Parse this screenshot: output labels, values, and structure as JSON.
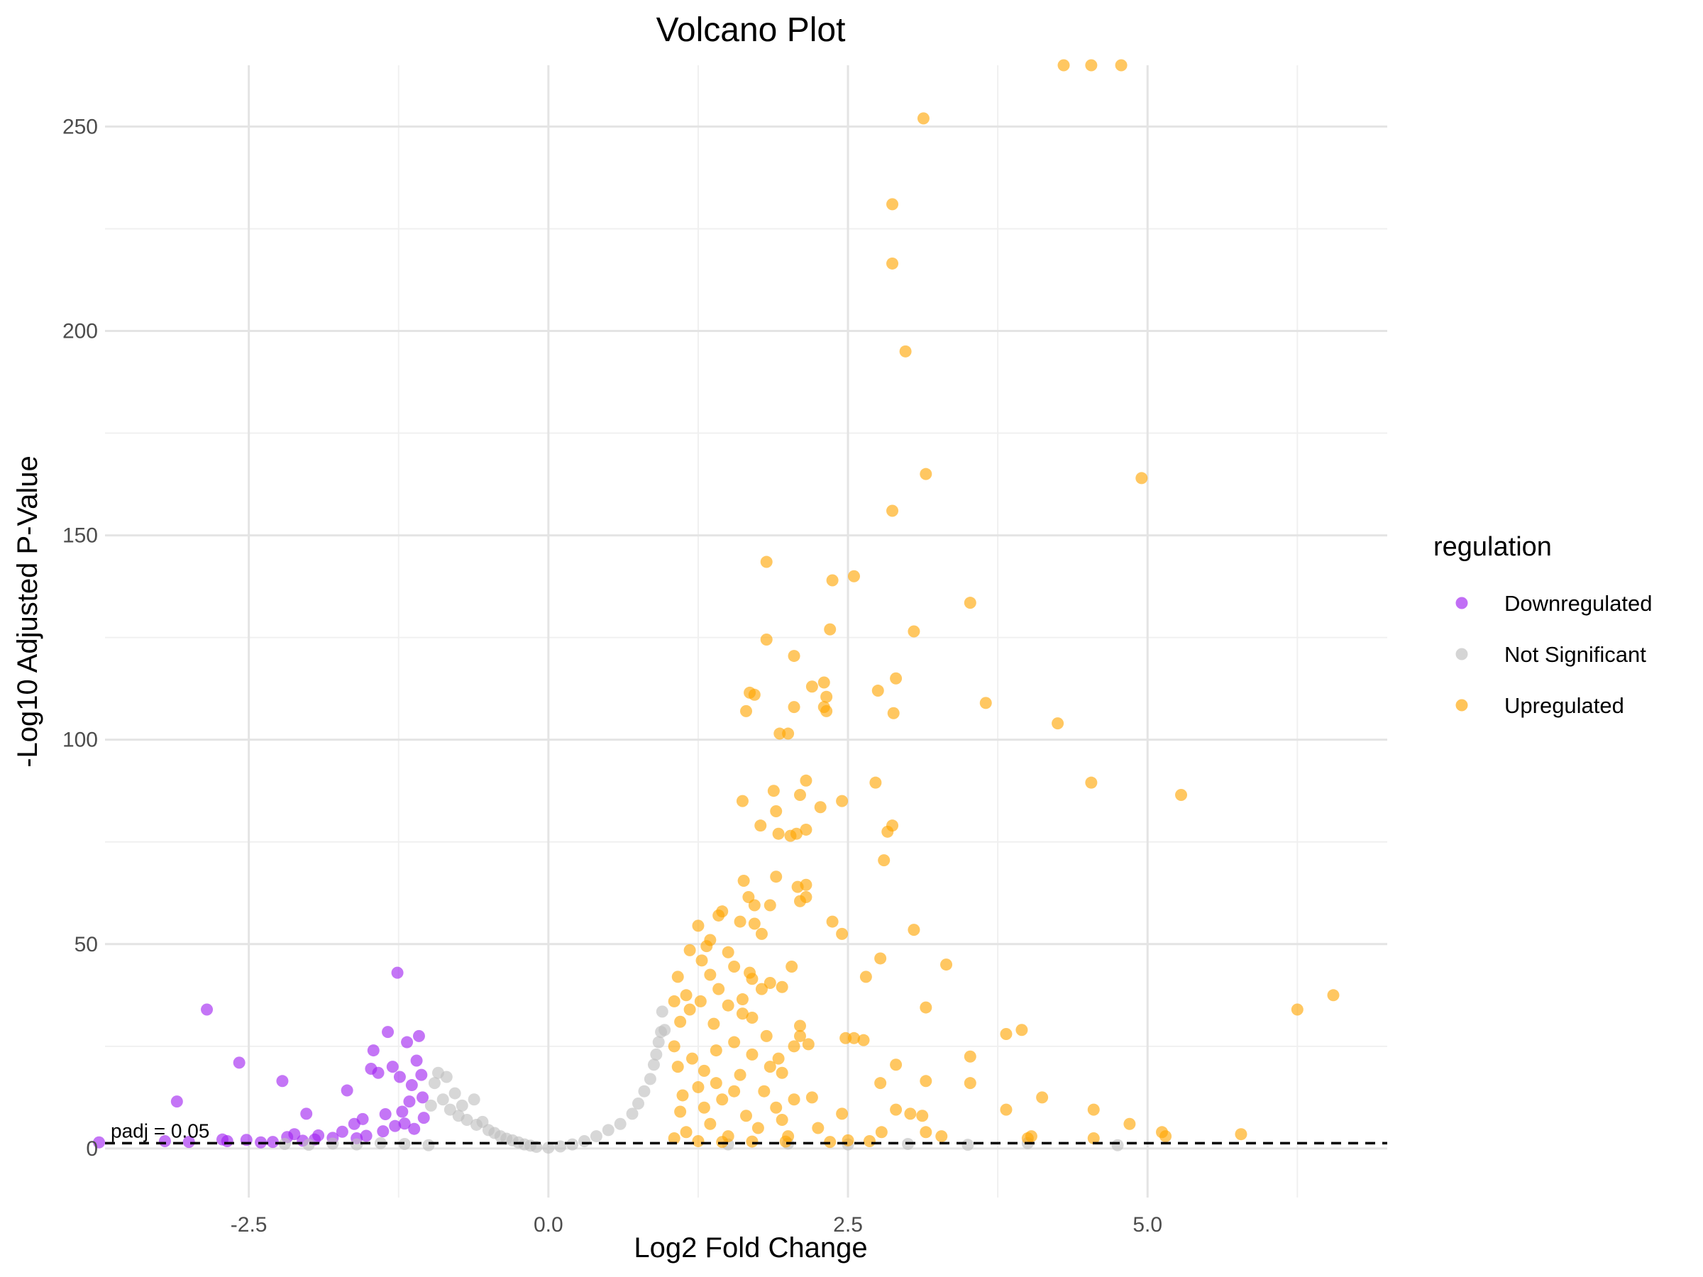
{
  "chart_data": {
    "type": "scatter",
    "title": "Volcano Plot",
    "xlabel": "Log2 Fold Change",
    "ylabel": "-Log10 Adjusted P-Value",
    "xlim": [
      -3.7,
      7.0
    ],
    "ylim": [
      -12,
      265
    ],
    "x_ticks": [
      -2.5,
      0.0,
      2.5,
      5.0
    ],
    "x_tick_labels": [
      "-2.5",
      "0.0",
      "2.5",
      "5.0"
    ],
    "y_ticks": [
      0,
      50,
      100,
      150,
      200,
      250
    ],
    "y_tick_labels": [
      "0",
      "50",
      "100",
      "150",
      "200",
      "250"
    ],
    "grid": true,
    "threshold": {
      "y": 1.3,
      "label": "padj = 0.05",
      "style": "dashed"
    },
    "legend": {
      "title": "regulation",
      "position": "right"
    },
    "series": [
      {
        "name": "Downregulated",
        "color": "#A020F0",
        "points": [
          [
            -3.75,
            1.5
          ],
          [
            -3.2,
            1.8
          ],
          [
            -3.1,
            11.5
          ],
          [
            -3.0,
            1.6
          ],
          [
            -2.85,
            34.0
          ],
          [
            -2.72,
            2.2
          ],
          [
            -2.68,
            1.8
          ],
          [
            -2.58,
            21.0
          ],
          [
            -2.52,
            2.1
          ],
          [
            -2.4,
            1.5
          ],
          [
            -2.3,
            1.6
          ],
          [
            -2.22,
            16.5
          ],
          [
            -2.18,
            2.8
          ],
          [
            -2.12,
            3.5
          ],
          [
            -2.05,
            1.9
          ],
          [
            -2.02,
            8.5
          ],
          [
            -1.95,
            2.2
          ],
          [
            -1.92,
            3.2
          ],
          [
            -1.8,
            2.6
          ],
          [
            -1.72,
            4.1
          ],
          [
            -1.68,
            14.2
          ],
          [
            -1.62,
            6.0
          ],
          [
            -1.6,
            2.5
          ],
          [
            -1.55,
            7.2
          ],
          [
            -1.52,
            3.1
          ],
          [
            -1.48,
            19.5
          ],
          [
            -1.46,
            24.0
          ],
          [
            -1.42,
            18.5
          ],
          [
            -1.38,
            4.2
          ],
          [
            -1.36,
            8.4
          ],
          [
            -1.34,
            28.5
          ],
          [
            -1.3,
            20.0
          ],
          [
            -1.28,
            5.5
          ],
          [
            -1.26,
            43.0
          ],
          [
            -1.24,
            17.5
          ],
          [
            -1.22,
            9.0
          ],
          [
            -1.2,
            6.1
          ],
          [
            -1.18,
            26.0
          ],
          [
            -1.16,
            11.5
          ],
          [
            -1.14,
            15.5
          ],
          [
            -1.12,
            4.8
          ],
          [
            -1.1,
            21.5
          ],
          [
            -1.08,
            27.5
          ],
          [
            -1.06,
            18.0
          ],
          [
            -1.05,
            12.5
          ],
          [
            -1.04,
            7.5
          ]
        ]
      },
      {
        "name": "Not Significant",
        "color": "#BEBEBE",
        "points": [
          [
            -2.2,
            1.1
          ],
          [
            -2.0,
            0.9
          ],
          [
            -1.8,
            1.2
          ],
          [
            -1.6,
            1.0
          ],
          [
            -1.4,
            1.3
          ],
          [
            -1.2,
            1.1
          ],
          [
            -1.0,
            0.8
          ],
          [
            -0.98,
            10.5
          ],
          [
            -0.95,
            16.0
          ],
          [
            -0.92,
            18.5
          ],
          [
            -0.88,
            12.0
          ],
          [
            -0.85,
            17.5
          ],
          [
            -0.82,
            9.5
          ],
          [
            -0.78,
            13.5
          ],
          [
            -0.75,
            8.0
          ],
          [
            -0.72,
            10.5
          ],
          [
            -0.68,
            7.0
          ],
          [
            -0.62,
            12.0
          ],
          [
            -0.6,
            5.8
          ],
          [
            -0.55,
            6.5
          ],
          [
            -0.5,
            4.5
          ],
          [
            -0.45,
            3.8
          ],
          [
            -0.4,
            3.0
          ],
          [
            -0.35,
            2.4
          ],
          [
            -0.3,
            2.0
          ],
          [
            -0.25,
            1.5
          ],
          [
            -0.2,
            1.0
          ],
          [
            -0.15,
            0.7
          ],
          [
            -0.1,
            0.4
          ],
          [
            0.0,
            0.2
          ],
          [
            0.1,
            0.5
          ],
          [
            0.2,
            1.0
          ],
          [
            0.3,
            1.8
          ],
          [
            0.4,
            3.0
          ],
          [
            0.5,
            4.5
          ],
          [
            0.6,
            6.0
          ],
          [
            0.7,
            8.5
          ],
          [
            0.75,
            11.0
          ],
          [
            0.8,
            14.0
          ],
          [
            0.85,
            17.0
          ],
          [
            0.88,
            20.5
          ],
          [
            0.9,
            23.0
          ],
          [
            0.92,
            26.0
          ],
          [
            0.94,
            28.5
          ],
          [
            0.95,
            33.5
          ],
          [
            0.97,
            29.0
          ],
          [
            1.5,
            1.0
          ],
          [
            2.0,
            1.2
          ],
          [
            2.5,
            1.0
          ],
          [
            3.0,
            1.1
          ],
          [
            3.5,
            0.9
          ],
          [
            4.0,
            1.3
          ],
          [
            4.75,
            0.8
          ]
        ]
      },
      {
        "name": "Upregulated",
        "color": "#FFA500",
        "points": [
          [
            4.3,
            265
          ],
          [
            4.53,
            265
          ],
          [
            4.78,
            265
          ],
          [
            3.13,
            252
          ],
          [
            2.87,
            231
          ],
          [
            2.87,
            216.5
          ],
          [
            2.98,
            195
          ],
          [
            3.15,
            165
          ],
          [
            4.95,
            164
          ],
          [
            2.87,
            156
          ],
          [
            1.82,
            143.5
          ],
          [
            2.55,
            140
          ],
          [
            2.37,
            139
          ],
          [
            3.52,
            133.5
          ],
          [
            3.05,
            126.5
          ],
          [
            2.35,
            127
          ],
          [
            1.82,
            124.5
          ],
          [
            2.05,
            120.5
          ],
          [
            2.9,
            115
          ],
          [
            2.3,
            114
          ],
          [
            2.2,
            113
          ],
          [
            2.75,
            112
          ],
          [
            1.68,
            111.5
          ],
          [
            1.72,
            111
          ],
          [
            2.32,
            110.5
          ],
          [
            2.3,
            108
          ],
          [
            2.05,
            108
          ],
          [
            3.65,
            109
          ],
          [
            1.65,
            107
          ],
          [
            2.32,
            107
          ],
          [
            2.88,
            106.5
          ],
          [
            1.93,
            101.5
          ],
          [
            2.0,
            101.5
          ],
          [
            4.25,
            104
          ],
          [
            2.15,
            90
          ],
          [
            2.73,
            89.5
          ],
          [
            4.53,
            89.5
          ],
          [
            5.28,
            86.5
          ],
          [
            1.88,
            87.5
          ],
          [
            2.1,
            86.5
          ],
          [
            1.62,
            85
          ],
          [
            2.45,
            85
          ],
          [
            1.9,
            82.5
          ],
          [
            2.27,
            83.5
          ],
          [
            1.77,
            79
          ],
          [
            2.15,
            78
          ],
          [
            2.87,
            79
          ],
          [
            2.83,
            77.5
          ],
          [
            1.92,
            77
          ],
          [
            2.07,
            77
          ],
          [
            2.02,
            76.5
          ],
          [
            2.8,
            70.5
          ],
          [
            1.9,
            66.5
          ],
          [
            1.63,
            65.5
          ],
          [
            2.08,
            64
          ],
          [
            2.15,
            64.5
          ],
          [
            1.67,
            61.5
          ],
          [
            2.15,
            61.5
          ],
          [
            2.1,
            60.5
          ],
          [
            1.85,
            59.5
          ],
          [
            1.72,
            59.5
          ],
          [
            1.45,
            58
          ],
          [
            1.42,
            57
          ],
          [
            1.6,
            55.5
          ],
          [
            1.72,
            55
          ],
          [
            1.25,
            54.5
          ],
          [
            2.37,
            55.5
          ],
          [
            1.78,
            52.5
          ],
          [
            2.45,
            52.5
          ],
          [
            3.05,
            53.5
          ],
          [
            1.35,
            51
          ],
          [
            1.32,
            49.5
          ],
          [
            1.18,
            48.5
          ],
          [
            1.5,
            48
          ],
          [
            1.28,
            46
          ],
          [
            2.77,
            46.5
          ],
          [
            3.32,
            45
          ],
          [
            1.55,
            44.5
          ],
          [
            2.03,
            44.5
          ],
          [
            1.08,
            42
          ],
          [
            1.35,
            42.5
          ],
          [
            1.68,
            43
          ],
          [
            1.7,
            41.5
          ],
          [
            2.65,
            42
          ],
          [
            1.85,
            40.5
          ],
          [
            1.95,
            39.5
          ],
          [
            1.78,
            39
          ],
          [
            1.15,
            37.5
          ],
          [
            1.42,
            39
          ],
          [
            1.62,
            36.5
          ],
          [
            1.05,
            36
          ],
          [
            1.27,
            36
          ],
          [
            1.5,
            35
          ],
          [
            3.15,
            34.5
          ],
          [
            6.25,
            34
          ],
          [
            6.55,
            37.5
          ],
          [
            1.18,
            34
          ],
          [
            1.62,
            33
          ],
          [
            1.7,
            32
          ],
          [
            1.1,
            31
          ],
          [
            1.38,
            30.5
          ],
          [
            2.1,
            30
          ],
          [
            1.82,
            27.5
          ],
          [
            2.1,
            27.5
          ],
          [
            2.48,
            27
          ],
          [
            2.55,
            27
          ],
          [
            2.63,
            26.5
          ],
          [
            3.82,
            28
          ],
          [
            3.95,
            29
          ],
          [
            1.92,
            22
          ],
          [
            2.05,
            25
          ],
          [
            2.17,
            25.5
          ],
          [
            1.7,
            23
          ],
          [
            3.52,
            22.5
          ],
          [
            2.9,
            20.5
          ],
          [
            1.95,
            18.5
          ],
          [
            2.77,
            16
          ],
          [
            3.15,
            16.5
          ],
          [
            3.52,
            16
          ],
          [
            4.12,
            12.5
          ],
          [
            2.2,
            12.5
          ],
          [
            2.9,
            9.5
          ],
          [
            3.82,
            9.5
          ],
          [
            3.02,
            8.5
          ],
          [
            3.12,
            8
          ],
          [
            4.55,
            9.5
          ],
          [
            2.45,
            8.5
          ],
          [
            3.15,
            4
          ],
          [
            4.0,
            2.5
          ],
          [
            4.03,
            3
          ],
          [
            4.55,
            2.5
          ],
          [
            4.85,
            6
          ],
          [
            5.15,
            3
          ],
          [
            5.12,
            4
          ],
          [
            5.78,
            3.5
          ],
          [
            2.78,
            4
          ],
          [
            2.5,
            2
          ],
          [
            3.28,
            3
          ],
          [
            2.68,
            1.8
          ],
          [
            1.98,
            1.7
          ],
          [
            2.35,
            1.6
          ],
          [
            1.2,
            22
          ],
          [
            1.3,
            19
          ],
          [
            1.4,
            24
          ],
          [
            1.55,
            26
          ],
          [
            1.25,
            15
          ],
          [
            1.45,
            12
          ],
          [
            1.6,
            18
          ],
          [
            1.8,
            14
          ],
          [
            1.1,
            9
          ],
          [
            1.35,
            6
          ],
          [
            1.65,
            8
          ],
          [
            1.9,
            10
          ],
          [
            1.15,
            4
          ],
          [
            1.5,
            3
          ],
          [
            1.75,
            5
          ],
          [
            2.0,
            3
          ],
          [
            1.05,
            2.5
          ],
          [
            1.25,
            1.8
          ],
          [
            1.45,
            1.6
          ],
          [
            1.7,
            1.7
          ],
          [
            1.05,
            25
          ],
          [
            1.08,
            20
          ],
          [
            1.12,
            13
          ],
          [
            1.3,
            10
          ],
          [
            1.55,
            14
          ],
          [
            1.85,
            20
          ],
          [
            1.95,
            7
          ],
          [
            2.25,
            5
          ],
          [
            2.05,
            12
          ],
          [
            1.4,
            16
          ]
        ]
      }
    ]
  }
}
